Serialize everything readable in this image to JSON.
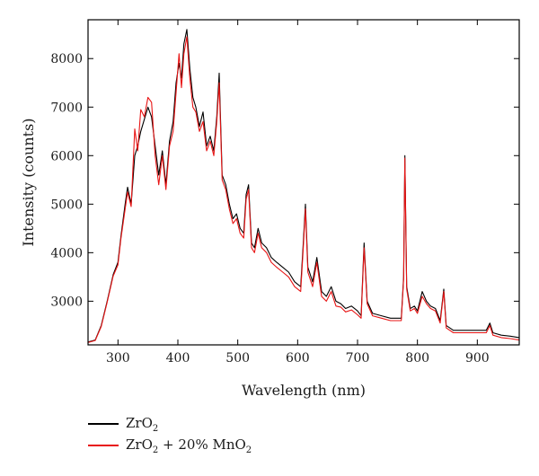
{
  "chart_data": {
    "type": "line",
    "xlabel": "Wavelength (nm)",
    "ylabel": "Intensity (counts)",
    "xlim": [
      250,
      970
    ],
    "ylim": [
      2100,
      8800
    ],
    "xticks": [
      300,
      400,
      500,
      600,
      700,
      800,
      900
    ],
    "yticks": [
      3000,
      4000,
      5000,
      6000,
      7000,
      8000
    ],
    "grid": false,
    "legend_position": "bottom",
    "legend": [
      {
        "prefix": "ZrO",
        "sub1": "2",
        "mid": "",
        "sub2": ""
      },
      {
        "prefix": "ZrO",
        "sub1": "2",
        "mid": " + 20% MnO",
        "sub2": "2"
      }
    ],
    "series": [
      {
        "name": "ZrO2",
        "color": "#000000",
        "points": [
          [
            250,
            2160
          ],
          [
            262,
            2200
          ],
          [
            272,
            2500
          ],
          [
            282,
            3000
          ],
          [
            292,
            3550
          ],
          [
            300,
            3800
          ],
          [
            305,
            4350
          ],
          [
            312,
            5000
          ],
          [
            316,
            5350
          ],
          [
            322,
            5000
          ],
          [
            328,
            6000
          ],
          [
            333,
            6200
          ],
          [
            338,
            6500
          ],
          [
            344,
            6750
          ],
          [
            350,
            7000
          ],
          [
            356,
            6800
          ],
          [
            362,
            6200
          ],
          [
            368,
            5600
          ],
          [
            374,
            6100
          ],
          [
            380,
            5400
          ],
          [
            386,
            6300
          ],
          [
            392,
            6700
          ],
          [
            397,
            7500
          ],
          [
            402,
            7900
          ],
          [
            406,
            7600
          ],
          [
            410,
            8300
          ],
          [
            415,
            8600
          ],
          [
            420,
            7800
          ],
          [
            425,
            7200
          ],
          [
            430,
            7000
          ],
          [
            436,
            6600
          ],
          [
            442,
            6900
          ],
          [
            448,
            6200
          ],
          [
            454,
            6400
          ],
          [
            460,
            6100
          ],
          [
            465,
            6800
          ],
          [
            469,
            7700
          ],
          [
            474,
            5600
          ],
          [
            480,
            5400
          ],
          [
            486,
            5000
          ],
          [
            492,
            4700
          ],
          [
            498,
            4800
          ],
          [
            504,
            4500
          ],
          [
            510,
            4400
          ],
          [
            514,
            5200
          ],
          [
            518,
            5400
          ],
          [
            523,
            4200
          ],
          [
            528,
            4100
          ],
          [
            534,
            4500
          ],
          [
            540,
            4200
          ],
          [
            548,
            4100
          ],
          [
            556,
            3900
          ],
          [
            565,
            3800
          ],
          [
            575,
            3700
          ],
          [
            585,
            3600
          ],
          [
            595,
            3400
          ],
          [
            605,
            3300
          ],
          [
            609,
            4100
          ],
          [
            613,
            5000
          ],
          [
            617,
            3700
          ],
          [
            625,
            3400
          ],
          [
            632,
            3900
          ],
          [
            640,
            3200
          ],
          [
            648,
            3100
          ],
          [
            656,
            3300
          ],
          [
            664,
            3000
          ],
          [
            672,
            2950
          ],
          [
            680,
            2850
          ],
          [
            690,
            2900
          ],
          [
            700,
            2800
          ],
          [
            706,
            2700
          ],
          [
            711,
            4200
          ],
          [
            716,
            3000
          ],
          [
            725,
            2750
          ],
          [
            740,
            2700
          ],
          [
            755,
            2650
          ],
          [
            765,
            2650
          ],
          [
            773,
            2650
          ],
          [
            777,
            3500
          ],
          [
            779,
            6000
          ],
          [
            782,
            3300
          ],
          [
            788,
            2850
          ],
          [
            795,
            2900
          ],
          [
            800,
            2800
          ],
          [
            808,
            3200
          ],
          [
            815,
            3000
          ],
          [
            822,
            2900
          ],
          [
            830,
            2850
          ],
          [
            838,
            2600
          ],
          [
            844,
            3250
          ],
          [
            848,
            2500
          ],
          [
            860,
            2400
          ],
          [
            880,
            2400
          ],
          [
            900,
            2400
          ],
          [
            915,
            2400
          ],
          [
            921,
            2550
          ],
          [
            926,
            2350
          ],
          [
            940,
            2300
          ],
          [
            955,
            2280
          ],
          [
            970,
            2250
          ]
        ]
      },
      {
        "name": "ZrO2 + 20% MnO2",
        "color": "#e81414",
        "points": [
          [
            250,
            2150
          ],
          [
            262,
            2190
          ],
          [
            272,
            2480
          ],
          [
            282,
            2980
          ],
          [
            292,
            3520
          ],
          [
            300,
            3750
          ],
          [
            305,
            4300
          ],
          [
            312,
            4900
          ],
          [
            316,
            5250
          ],
          [
            322,
            4950
          ],
          [
            328,
            6550
          ],
          [
            333,
            6100
          ],
          [
            338,
            6950
          ],
          [
            344,
            6800
          ],
          [
            350,
            7200
          ],
          [
            356,
            7100
          ],
          [
            362,
            6000
          ],
          [
            368,
            5400
          ],
          [
            374,
            6000
          ],
          [
            380,
            5300
          ],
          [
            386,
            6200
          ],
          [
            392,
            6500
          ],
          [
            397,
            7300
          ],
          [
            402,
            8100
          ],
          [
            406,
            7400
          ],
          [
            410,
            8100
          ],
          [
            415,
            8450
          ],
          [
            420,
            7600
          ],
          [
            425,
            7000
          ],
          [
            430,
            6900
          ],
          [
            436,
            6500
          ],
          [
            442,
            6700
          ],
          [
            448,
            6100
          ],
          [
            454,
            6300
          ],
          [
            460,
            6000
          ],
          [
            465,
            6700
          ],
          [
            469,
            7500
          ],
          [
            474,
            5500
          ],
          [
            480,
            5300
          ],
          [
            486,
            4900
          ],
          [
            492,
            4600
          ],
          [
            498,
            4700
          ],
          [
            504,
            4400
          ],
          [
            510,
            4300
          ],
          [
            514,
            5100
          ],
          [
            518,
            5300
          ],
          [
            523,
            4100
          ],
          [
            528,
            4000
          ],
          [
            534,
            4400
          ],
          [
            540,
            4100
          ],
          [
            548,
            4000
          ],
          [
            556,
            3800
          ],
          [
            565,
            3700
          ],
          [
            575,
            3600
          ],
          [
            585,
            3500
          ],
          [
            595,
            3300
          ],
          [
            605,
            3200
          ],
          [
            609,
            4000
          ],
          [
            613,
            4900
          ],
          [
            617,
            3600
          ],
          [
            625,
            3300
          ],
          [
            632,
            3800
          ],
          [
            640,
            3100
          ],
          [
            648,
            3000
          ],
          [
            656,
            3200
          ],
          [
            664,
            2900
          ],
          [
            672,
            2880
          ],
          [
            680,
            2780
          ],
          [
            690,
            2820
          ],
          [
            700,
            2720
          ],
          [
            706,
            2650
          ],
          [
            711,
            4100
          ],
          [
            716,
            2950
          ],
          [
            725,
            2700
          ],
          [
            740,
            2650
          ],
          [
            755,
            2600
          ],
          [
            765,
            2600
          ],
          [
            773,
            2600
          ],
          [
            777,
            3450
          ],
          [
            779,
            5950
          ],
          [
            782,
            3250
          ],
          [
            788,
            2800
          ],
          [
            795,
            2850
          ],
          [
            800,
            2750
          ],
          [
            808,
            3100
          ],
          [
            815,
            2950
          ],
          [
            822,
            2850
          ],
          [
            830,
            2800
          ],
          [
            838,
            2550
          ],
          [
            844,
            3200
          ],
          [
            848,
            2450
          ],
          [
            860,
            2350
          ],
          [
            880,
            2350
          ],
          [
            900,
            2350
          ],
          [
            915,
            2350
          ],
          [
            921,
            2500
          ],
          [
            926,
            2300
          ],
          [
            940,
            2250
          ],
          [
            955,
            2230
          ],
          [
            970,
            2200
          ]
        ]
      }
    ]
  }
}
